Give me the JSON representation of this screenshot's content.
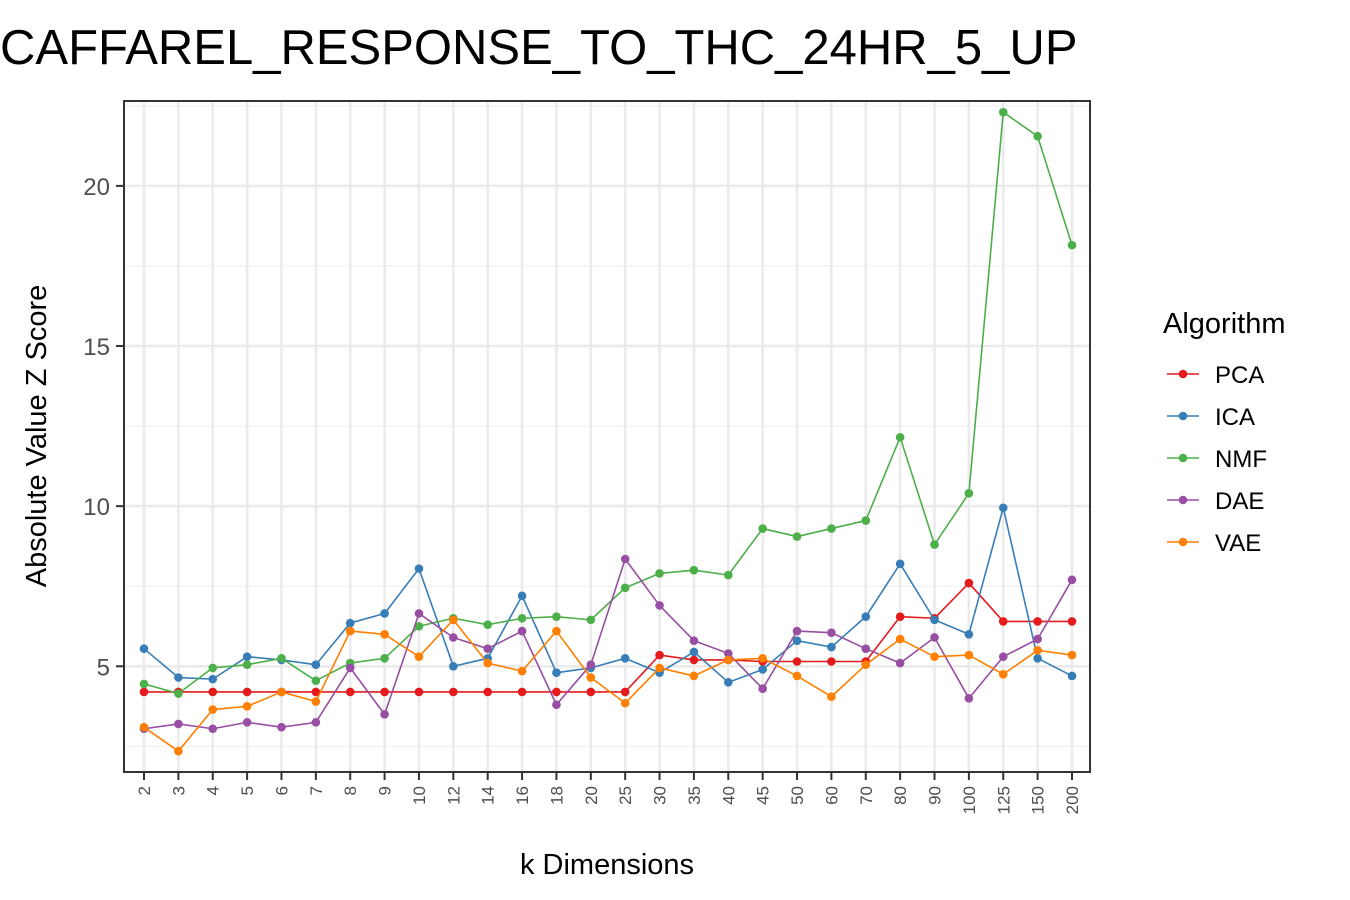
{
  "chart_data": {
    "type": "line",
    "title": "CAFFAREL_RESPONSE_TO_THC_24HR_5_UP",
    "xlabel": "k Dimensions",
    "ylabel": "Absolute Value Z Score",
    "categories": [
      "2",
      "3",
      "4",
      "5",
      "6",
      "7",
      "8",
      "9",
      "10",
      "12",
      "14",
      "16",
      "18",
      "20",
      "25",
      "30",
      "35",
      "40",
      "45",
      "50",
      "60",
      "70",
      "80",
      "90",
      "100",
      "125",
      "150",
      "200"
    ],
    "ylim": [
      1.7,
      22.65
    ],
    "yticks": [
      5,
      10,
      15,
      20
    ],
    "grid": true,
    "legend": {
      "title": "Algorithm",
      "placement": "right"
    },
    "series": [
      {
        "name": "PCA",
        "color": "#e41a1c",
        "values": [
          4.2,
          4.2,
          4.2,
          4.2,
          4.2,
          4.2,
          4.2,
          4.2,
          4.2,
          4.2,
          4.2,
          4.2,
          4.2,
          4.2,
          4.2,
          5.35,
          5.2,
          5.2,
          5.15,
          5.15,
          5.15,
          5.15,
          6.55,
          6.5,
          7.6,
          6.4,
          6.4,
          6.4
        ]
      },
      {
        "name": "ICA",
        "color": "#377eb8",
        "values": [
          5.55,
          4.65,
          4.6,
          5.3,
          5.2,
          5.05,
          6.35,
          6.65,
          8.05,
          5.0,
          5.25,
          7.2,
          4.8,
          4.95,
          5.25,
          4.8,
          5.45,
          4.5,
          4.9,
          5.8,
          5.6,
          6.55,
          8.2,
          6.45,
          6.0,
          9.95,
          5.25,
          4.7
        ]
      },
      {
        "name": "NMF",
        "color": "#4daf4a",
        "values": [
          4.45,
          4.15,
          4.95,
          5.05,
          5.25,
          4.55,
          5.1,
          5.25,
          6.25,
          6.5,
          6.3,
          6.5,
          6.55,
          6.45,
          7.45,
          7.9,
          8.0,
          7.85,
          9.3,
          9.05,
          9.3,
          9.55,
          12.15,
          8.8,
          10.4,
          22.3,
          21.55,
          18.15
        ]
      },
      {
        "name": "DAE",
        "color": "#984ea3",
        "values": [
          3.05,
          3.2,
          3.05,
          3.25,
          3.1,
          3.25,
          4.95,
          3.5,
          6.65,
          5.9,
          5.55,
          6.1,
          3.8,
          5.05,
          8.35,
          6.9,
          5.8,
          5.4,
          4.3,
          6.1,
          6.05,
          5.55,
          5.1,
          5.9,
          4.0,
          5.3,
          5.85,
          7.7
        ]
      },
      {
        "name": "VAE",
        "color": "#ff7f00",
        "values": [
          3.1,
          2.35,
          3.65,
          3.75,
          4.2,
          3.9,
          6.1,
          6.0,
          5.3,
          6.45,
          5.1,
          4.85,
          6.1,
          4.65,
          3.85,
          4.95,
          4.7,
          5.2,
          5.25,
          4.7,
          4.05,
          5.05,
          5.85,
          5.3,
          5.35,
          4.75,
          5.5,
          5.35
        ]
      }
    ]
  }
}
